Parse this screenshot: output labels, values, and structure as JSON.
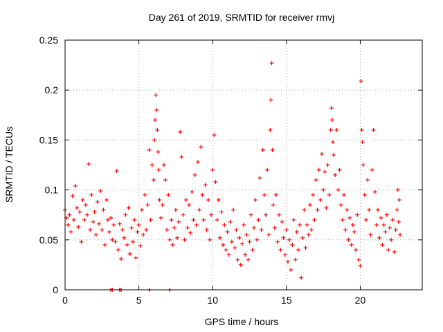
{
  "chart_data": {
    "type": "scatter",
    "title": "Day 261 of 2019, SRMTID for receiver rmvj",
    "xlabel": "GPS time / hours",
    "ylabel": "SRMTID / TECUs",
    "xlim": [
      0,
      24.2
    ],
    "ylim": [
      0,
      0.25
    ],
    "xticks": [
      0,
      5,
      10,
      15,
      20
    ],
    "xtick_labels": [
      "0",
      "5",
      "10",
      "15",
      "20"
    ],
    "yticks": [
      0,
      0.05,
      0.1,
      0.15,
      0.2,
      0.25
    ],
    "ytick_labels": [
      "0",
      "0.05",
      "0.1",
      "0.15",
      "0.2",
      "0.25"
    ],
    "grid": true,
    "marker": "plus",
    "color": "#ff0000",
    "series": [
      {
        "name": "SRMTID",
        "points": [
          [
            0.0,
            0.08
          ],
          [
            0.1,
            0.072
          ],
          [
            0.2,
            0.065
          ],
          [
            0.3,
            0.075
          ],
          [
            0.4,
            0.058
          ],
          [
            0.5,
            0.094
          ],
          [
            0.6,
            0.07
          ],
          [
            0.7,
            0.104
          ],
          [
            0.8,
            0.082
          ],
          [
            0.9,
            0.063
          ],
          [
            1.0,
            0.078
          ],
          [
            1.1,
            0.048
          ],
          [
            1.2,
            0.09
          ],
          [
            1.3,
            0.07
          ],
          [
            1.4,
            0.085
          ],
          [
            1.5,
            0.075
          ],
          [
            1.6,
            0.126
          ],
          [
            1.7,
            0.06
          ],
          [
            1.8,
            0.095
          ],
          [
            1.9,
            0.068
          ],
          [
            2.0,
            0.078
          ],
          [
            2.1,
            0.055
          ],
          [
            2.2,
            0.088
          ],
          [
            2.3,
            0.066
          ],
          [
            2.4,
            0.099
          ],
          [
            2.5,
            0.06
          ],
          [
            2.6,
            0.08
          ],
          [
            2.7,
            0.045
          ],
          [
            2.8,
            0.09
          ],
          [
            2.9,
            0.07
          ],
          [
            3.0,
            0.058
          ],
          [
            3.1,
            0.072
          ],
          [
            3.2,
            0.05
          ],
          [
            3.3,
            0.065
          ],
          [
            3.4,
            0.048
          ],
          [
            3.5,
            0.119
          ],
          [
            3.6,
            0.04
          ],
          [
            3.7,
            0.066
          ],
          [
            3.8,
            0.031
          ],
          [
            3.9,
            0.06
          ],
          [
            4.0,
            0.052
          ],
          [
            4.1,
            0.075
          ],
          [
            4.2,
            0.045
          ],
          [
            4.3,
            0.082
          ],
          [
            4.4,
            0.036
          ],
          [
            4.5,
            0.062
          ],
          [
            4.6,
            0.048
          ],
          [
            4.7,
            0.07
          ],
          [
            4.8,
            0.032
          ],
          [
            4.9,
            0.058
          ],
          [
            5.0,
            0.065
          ],
          [
            5.1,
            0.044
          ],
          [
            5.2,
            0.08
          ],
          [
            5.3,
            0.055
          ],
          [
            5.4,
            0.095
          ],
          [
            5.5,
            0.06
          ],
          [
            5.6,
            0.085
          ],
          [
            5.7,
            0.14
          ],
          [
            5.8,
            0.07
          ],
          [
            5.9,
            0.125
          ],
          [
            6.0,
            0.11
          ],
          [
            6.05,
            0.15
          ],
          [
            6.1,
            0.17
          ],
          [
            6.15,
            0.195
          ],
          [
            6.2,
            0.18
          ],
          [
            6.25,
            0.16
          ],
          [
            6.3,
            0.138
          ],
          [
            6.35,
            0.12
          ],
          [
            6.4,
            0.09
          ],
          [
            6.5,
            0.072
          ],
          [
            6.6,
            0.085
          ],
          [
            6.7,
            0.125
          ],
          [
            6.8,
            0.11
          ],
          [
            6.9,
            0.06
          ],
          [
            7.0,
            0.095
          ],
          [
            7.1,
            0.05
          ],
          [
            7.2,
            0.07
          ],
          [
            7.3,
            0.045
          ],
          [
            7.4,
            0.062
          ],
          [
            7.5,
            0.08
          ],
          [
            7.6,
            0.052
          ],
          [
            7.7,
            0.068
          ],
          [
            7.8,
            0.158
          ],
          [
            7.9,
            0.133
          ],
          [
            8.0,
            0.075
          ],
          [
            8.1,
            0.05
          ],
          [
            8.2,
            0.09
          ],
          [
            8.3,
            0.062
          ],
          [
            8.4,
            0.085
          ],
          [
            8.5,
            0.057
          ],
          [
            8.6,
            0.098
          ],
          [
            8.7,
            0.07
          ],
          [
            8.8,
            0.115
          ],
          [
            8.9,
            0.065
          ],
          [
            9.0,
            0.128
          ],
          [
            9.1,
            0.08
          ],
          [
            9.2,
            0.143
          ],
          [
            9.3,
            0.095
          ],
          [
            9.4,
            0.07
          ],
          [
            9.5,
            0.105
          ],
          [
            9.6,
            0.06
          ],
          [
            9.7,
            0.09
          ],
          [
            9.8,
            0.05
          ],
          [
            9.9,
            0.075
          ],
          [
            10.0,
            0.12
          ],
          [
            10.1,
            0.155
          ],
          [
            10.2,
            0.108
          ],
          [
            10.3,
            0.07
          ],
          [
            10.4,
            0.09
          ],
          [
            10.5,
            0.052
          ],
          [
            10.6,
            0.078
          ],
          [
            10.7,
            0.045
          ],
          [
            10.8,
            0.065
          ],
          [
            10.9,
            0.04
          ],
          [
            11.0,
            0.058
          ],
          [
            11.1,
            0.035
          ],
          [
            11.2,
            0.068
          ],
          [
            11.3,
            0.048
          ],
          [
            11.4,
            0.08
          ],
          [
            11.5,
            0.042
          ],
          [
            11.6,
            0.06
          ],
          [
            11.7,
            0.03
          ],
          [
            11.8,
            0.052
          ],
          [
            11.9,
            0.025
          ],
          [
            12.0,
            0.046
          ],
          [
            12.1,
            0.065
          ],
          [
            12.2,
            0.035
          ],
          [
            12.3,
            0.055
          ],
          [
            12.4,
            0.03
          ],
          [
            12.5,
            0.048
          ],
          [
            12.6,
            0.075
          ],
          [
            12.7,
            0.04
          ],
          [
            12.8,
            0.062
          ],
          [
            12.9,
            0.09
          ],
          [
            13.0,
            0.05
          ],
          [
            13.1,
            0.07
          ],
          [
            13.2,
            0.112
          ],
          [
            13.3,
            0.06
          ],
          [
            13.4,
            0.14
          ],
          [
            13.5,
            0.095
          ],
          [
            13.6,
            0.075
          ],
          [
            13.7,
            0.12
          ],
          [
            13.8,
            0.055
          ],
          [
            13.9,
            0.16
          ],
          [
            13.95,
            0.19
          ],
          [
            14.0,
            0.227
          ],
          [
            14.05,
            0.14
          ],
          [
            14.1,
            0.085
          ],
          [
            14.2,
            0.062
          ],
          [
            14.3,
            0.095
          ],
          [
            14.4,
            0.048
          ],
          [
            14.5,
            0.075
          ],
          [
            14.6,
            0.04
          ],
          [
            14.7,
            0.068
          ],
          [
            14.8,
            0.052
          ],
          [
            14.9,
            0.035
          ],
          [
            15.0,
            0.06
          ],
          [
            15.1,
            0.028
          ],
          [
            15.2,
            0.05
          ],
          [
            15.3,
            0.02
          ],
          [
            15.4,
            0.045
          ],
          [
            15.5,
            0.07
          ],
          [
            15.6,
            0.03
          ],
          [
            15.7,
            0.058
          ],
          [
            15.8,
            0.04
          ],
          [
            15.9,
            0.065
          ],
          [
            16.0,
            0.012
          ],
          [
            16.1,
            0.052
          ],
          [
            16.2,
            0.08
          ],
          [
            16.3,
            0.042
          ],
          [
            16.4,
            0.065
          ],
          [
            16.5,
            0.055
          ],
          [
            16.6,
            0.085
          ],
          [
            16.7,
            0.06
          ],
          [
            16.8,
            0.095
          ],
          [
            16.9,
            0.07
          ],
          [
            17.0,
            0.11
          ],
          [
            17.1,
            0.08
          ],
          [
            17.2,
            0.12
          ],
          [
            17.3,
            0.09
          ],
          [
            17.4,
            0.136
          ],
          [
            17.5,
            0.1
          ],
          [
            17.6,
            0.118
          ],
          [
            17.7,
            0.082
          ],
          [
            17.8,
            0.125
          ],
          [
            17.9,
            0.095
          ],
          [
            18.0,
            0.16
          ],
          [
            18.05,
            0.182
          ],
          [
            18.1,
            0.17
          ],
          [
            18.15,
            0.148
          ],
          [
            18.2,
            0.135
          ],
          [
            18.3,
            0.115
          ],
          [
            18.4,
            0.16
          ],
          [
            18.5,
            0.1
          ],
          [
            18.6,
            0.12
          ],
          [
            18.7,
            0.085
          ],
          [
            18.8,
            0.07
          ],
          [
            18.9,
            0.095
          ],
          [
            19.0,
            0.06
          ],
          [
            19.1,
            0.08
          ],
          [
            19.2,
            0.05
          ],
          [
            19.3,
            0.072
          ],
          [
            19.4,
            0.045
          ],
          [
            19.5,
            0.065
          ],
          [
            19.6,
            0.058
          ],
          [
            19.7,
            0.04
          ],
          [
            19.8,
            0.075
          ],
          [
            19.9,
            0.03
          ],
          [
            20.0,
            0.024
          ],
          [
            20.05,
            0.209
          ],
          [
            20.1,
            0.16
          ],
          [
            20.15,
            0.148
          ],
          [
            20.2,
            0.125
          ],
          [
            20.3,
            0.095
          ],
          [
            20.4,
            0.07
          ],
          [
            20.5,
            0.11
          ],
          [
            20.6,
            0.08
          ],
          [
            20.7,
            0.055
          ],
          [
            20.8,
            0.12
          ],
          [
            20.9,
            0.16
          ],
          [
            21.0,
            0.098
          ],
          [
            21.1,
            0.065
          ],
          [
            21.2,
            0.08
          ],
          [
            21.3,
            0.052
          ],
          [
            21.4,
            0.072
          ],
          [
            21.5,
            0.045
          ],
          [
            21.6,
            0.065
          ],
          [
            21.7,
            0.058
          ],
          [
            21.8,
            0.075
          ],
          [
            21.9,
            0.04
          ],
          [
            22.0,
            0.062
          ],
          [
            22.1,
            0.05
          ],
          [
            22.2,
            0.07
          ],
          [
            22.3,
            0.038
          ],
          [
            22.4,
            0.06
          ],
          [
            22.5,
            0.08
          ],
          [
            22.55,
            0.1
          ],
          [
            22.6,
            0.068
          ],
          [
            22.65,
            0.09
          ],
          [
            22.7,
            0.055
          ],
          [
            3.1,
            0.0
          ],
          [
            3.2,
            0.0
          ],
          [
            3.7,
            0.0
          ],
          [
            3.8,
            0.0
          ],
          [
            5.7,
            0.0
          ],
          [
            7.1,
            0.0
          ]
        ]
      }
    ]
  }
}
